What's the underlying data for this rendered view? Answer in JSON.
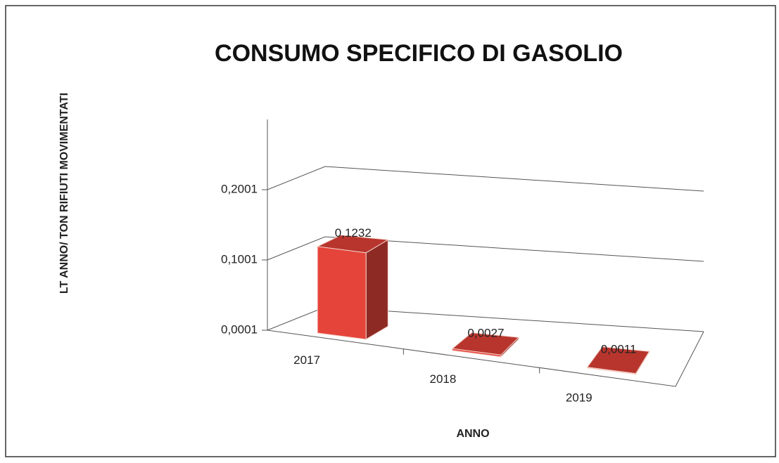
{
  "chart_data": {
    "type": "bar3d",
    "title": "CONSUMO SPECIFICO DI GASOLIO",
    "x_label": "ANNO",
    "y_label": "LT ANNO/ TON RIFIUTI MOVIMENTATI",
    "categories": [
      "2017",
      "2018",
      "2019"
    ],
    "values": [
      0.1232,
      0.0027,
      0.0011
    ],
    "value_labels": [
      "0,1232",
      "0,0027",
      "0,0011"
    ],
    "color": "#e5443a",
    "ylim": [
      0.0001,
      0.3001
    ],
    "yticks": [
      {
        "value": 0.0001,
        "label": "0,0001"
      },
      {
        "value": 0.1001,
        "label": "0,1001"
      },
      {
        "value": 0.2001,
        "label": "0,2001"
      }
    ],
    "grid": true
  }
}
